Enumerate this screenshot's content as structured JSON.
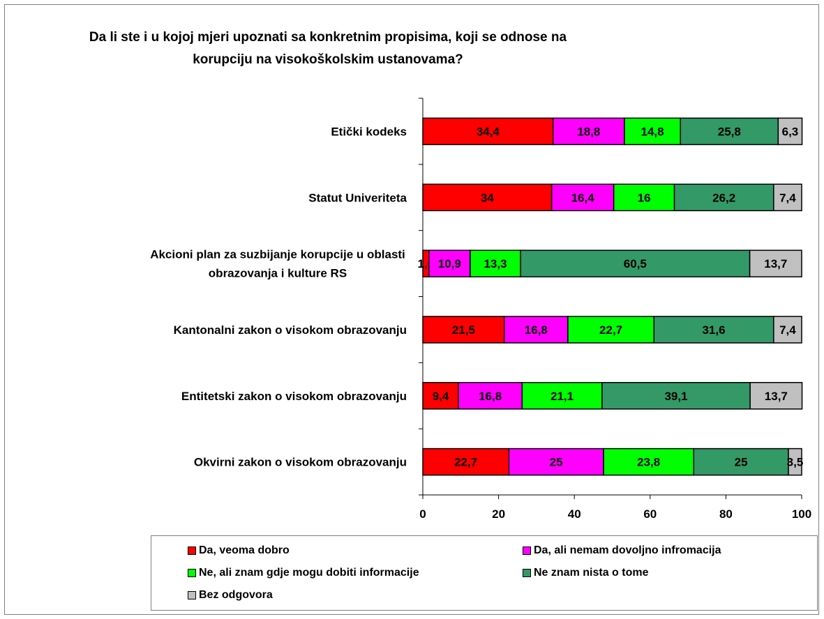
{
  "chart_data": {
    "type": "bar",
    "orientation": "horizontal",
    "stacked": true,
    "title": "Da li ste  i u kojoj mjeri upoznati sa konkretnim propisima, koji se odnose na korupciju na visokoškolskim ustanovama?",
    "title_lines": [
      "Da li ste  i u kojoj mjeri upoznati sa konkretnim propisima, koji se odnose na",
      "korupciju na visokoškolskim ustanovama?"
    ],
    "categories": [
      [
        "Etički kodeks"
      ],
      [
        "Statut Univeriteta"
      ],
      [
        "Akcioni plan za suzbijanje korupcije u oblasti",
        "obrazovanja i kulture RS"
      ],
      [
        "Kantonalni zakon o visokom obrazovanju"
      ],
      [
        "Entitetski zakon o visokom obrazovanju"
      ],
      [
        "Okvirni zakon o visokom obrazovanju"
      ]
    ],
    "series": [
      {
        "name": "Da, veoma dobro",
        "color": "#ff0000",
        "values": [
          34.4,
          34,
          1.6,
          21.5,
          9.4,
          22.7
        ],
        "labels": [
          "34,4",
          "34",
          "1,6",
          "21,5",
          "9,4",
          "22,7"
        ]
      },
      {
        "name": "Da, ali nemam dovoljno infromacija",
        "color": "#ff00ff",
        "values": [
          18.8,
          16.4,
          10.9,
          16.8,
          16.8,
          25
        ],
        "labels": [
          "18,8",
          "16,4",
          "10,9",
          "16,8",
          "16,8",
          "25"
        ]
      },
      {
        "name": "Ne, ali znam gdje mogu dobiti informacije",
        "color": "#00ff00",
        "values": [
          14.8,
          16,
          13.3,
          22.7,
          21.1,
          23.8
        ],
        "labels": [
          "14,8",
          "16",
          "13,3",
          "22,7",
          "21,1",
          "23,8"
        ]
      },
      {
        "name": "Ne znam nista o tome",
        "color": "#339966",
        "values": [
          25.8,
          26.2,
          60.5,
          31.6,
          39.1,
          25
        ],
        "labels": [
          "25,8",
          "26,2",
          "60,5",
          "31,6",
          "39,1",
          "25"
        ]
      },
      {
        "name": "Bez odgovora",
        "color": "#c0c0c0",
        "values": [
          6.3,
          7.4,
          13.7,
          7.4,
          13.7,
          3.5
        ],
        "labels": [
          "6,3",
          "7,4",
          "13,7",
          "7,4",
          "13,7",
          "3,5"
        ]
      }
    ],
    "xlim": [
      0,
      100
    ],
    "xticks": [
      "0",
      "20",
      "40",
      "60",
      "80",
      "100"
    ],
    "grid": false,
    "legend_position": "bottom"
  }
}
